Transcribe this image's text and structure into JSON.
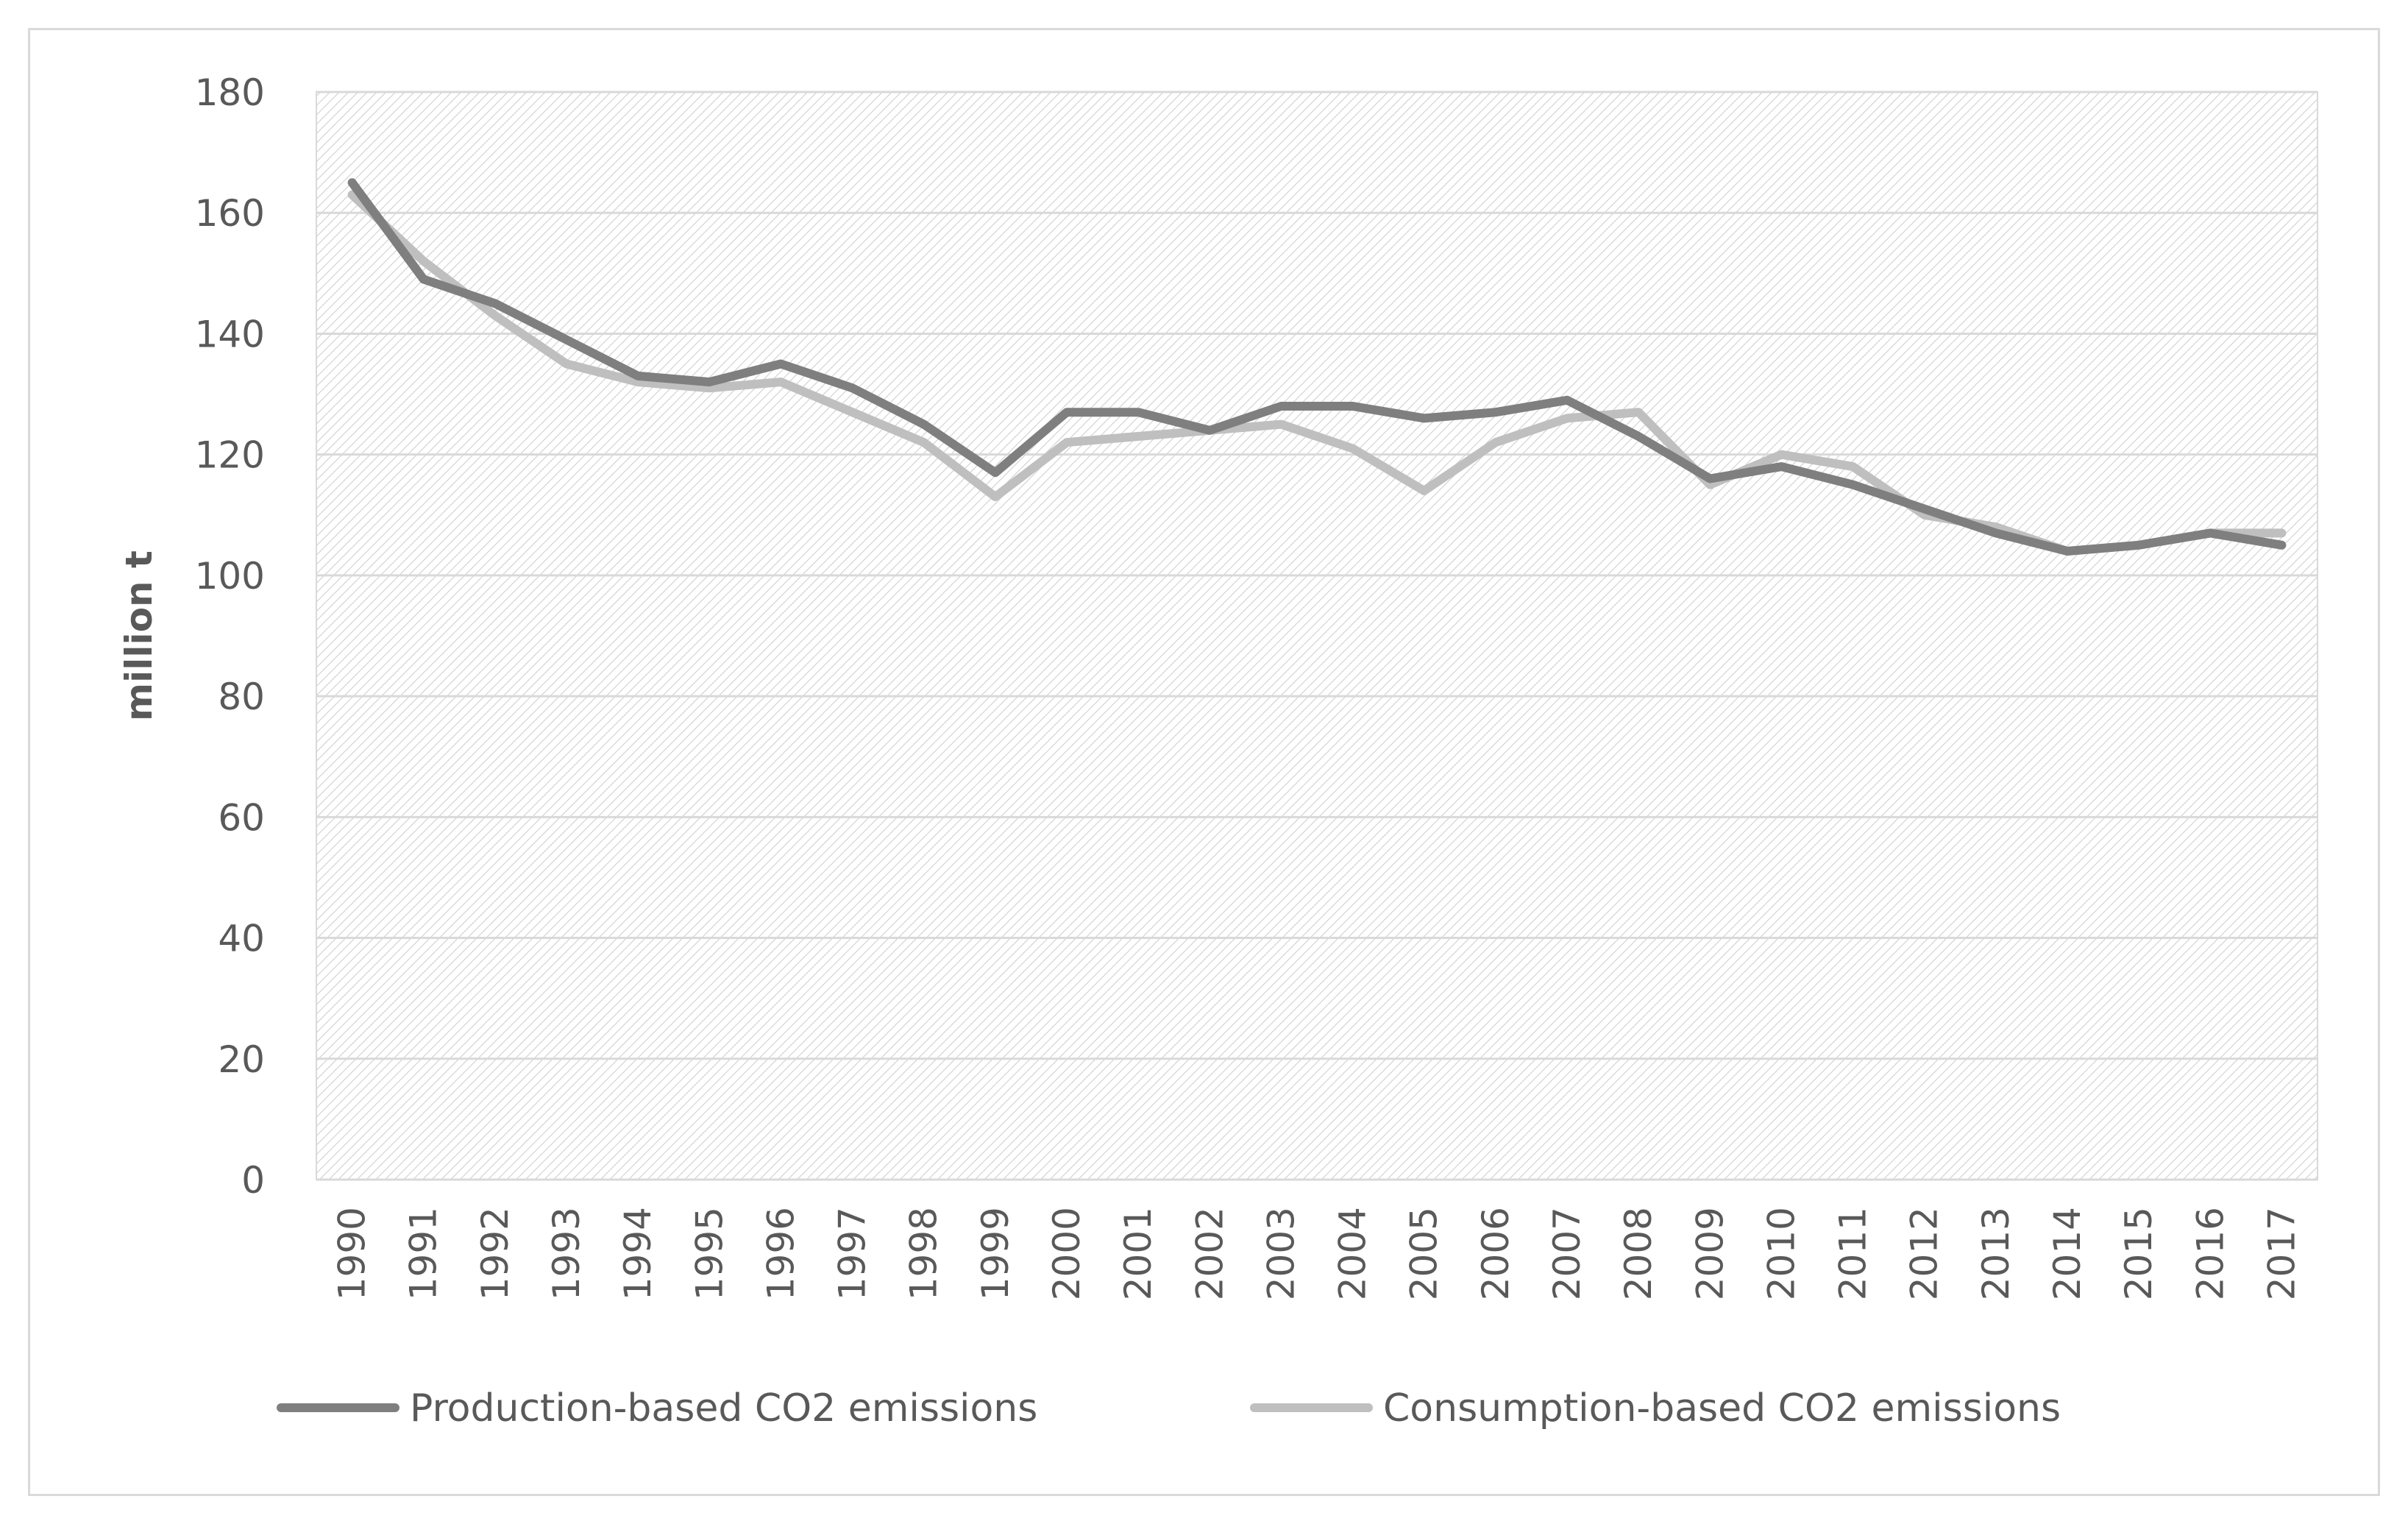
{
  "chart_data": {
    "type": "line",
    "title": "",
    "xlabel": "",
    "ylabel": "million t",
    "ylim": [
      0,
      180
    ],
    "yticks": [
      "0",
      "20",
      "40",
      "60",
      "80",
      "100",
      "120",
      "140",
      "160",
      "180"
    ],
    "grid": true,
    "legend_position": "bottom",
    "categories": [
      "1990",
      "1991",
      "1992",
      "1993",
      "1994",
      "1995",
      "1996",
      "1997",
      "1998",
      "1999",
      "2000",
      "2001",
      "2002",
      "2003",
      "2004",
      "2005",
      "2006",
      "2007",
      "2008",
      "2009",
      "2010",
      "2011",
      "2012",
      "2013",
      "2014",
      "2015",
      "2016",
      "2017"
    ],
    "series": [
      {
        "name": "Production-based CO2 emissions",
        "color": "#7f7f7f",
        "values": [
          165,
          149,
          145,
          139,
          133,
          132,
          135,
          131,
          125,
          117,
          127,
          127,
          124,
          128,
          128,
          126,
          127,
          129,
          123,
          116,
          118,
          115,
          111,
          107,
          104,
          105,
          107,
          105
        ]
      },
      {
        "name": "Consumption-based CO2 emissions",
        "color": "#bfbfbf",
        "values": [
          163,
          152,
          143,
          135,
          132,
          131,
          132,
          127,
          122,
          113,
          122,
          123,
          124,
          125,
          121,
          114,
          122,
          126,
          127,
          115,
          120,
          118,
          110,
          108,
          104,
          105,
          107,
          107
        ]
      }
    ]
  }
}
